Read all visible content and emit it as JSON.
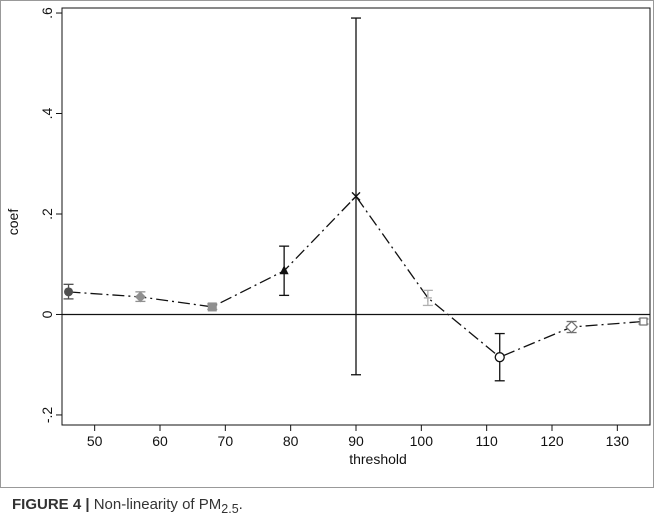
{
  "caption": {
    "label": "FIGURE 4 |",
    "text_before": "Non-linearity of PM",
    "subscript": "2.5",
    "text_after": "."
  },
  "chart_data": {
    "type": "scatter",
    "title": "",
    "xlabel": "threshold",
    "ylabel": "coef",
    "xlim": [
      45,
      135
    ],
    "ylim": [
      -0.22,
      0.61
    ],
    "x_ticks": [
      50,
      60,
      70,
      80,
      90,
      100,
      110,
      120,
      130
    ],
    "x_tick_labels": [
      "50",
      "60",
      "70",
      "80",
      "90",
      "100",
      "110",
      "120",
      "130"
    ],
    "y_ticks": [
      -0.2,
      0,
      0.2,
      0.4,
      0.6
    ],
    "y_tick_labels": [
      "-.2",
      "0",
      ".2",
      ".4",
      ".6"
    ],
    "reference_line_y": 0,
    "grid": false,
    "legend": "none",
    "series": [
      {
        "line_style": "dash-dot",
        "points": [
          {
            "x": 46,
            "y": 0.045,
            "lo": 0.031,
            "hi": 0.06,
            "marker": "filled-circle",
            "color": "#505050"
          },
          {
            "x": 57,
            "y": 0.035,
            "lo": 0.026,
            "hi": 0.045,
            "marker": "filled-diamond",
            "color": "#909090"
          },
          {
            "x": 68,
            "y": 0.015,
            "lo": 0.01,
            "hi": 0.021,
            "marker": "filled-square",
            "color": "#909090"
          },
          {
            "x": 79,
            "y": 0.087,
            "lo": 0.038,
            "hi": 0.136,
            "marker": "filled-triangle",
            "color": "#111111"
          },
          {
            "x": 90,
            "y": 0.235,
            "lo": -0.12,
            "hi": 0.59,
            "marker": "x",
            "color": "#111111"
          },
          {
            "x": 101,
            "y": 0.033,
            "lo": 0.018,
            "hi": 0.048,
            "marker": "plus",
            "color": "#b0b0b0"
          },
          {
            "x": 112,
            "y": -0.085,
            "lo": -0.132,
            "hi": -0.038,
            "marker": "hollow-circle",
            "color": "#111111"
          },
          {
            "x": 123,
            "y": -0.025,
            "lo": -0.036,
            "hi": -0.014,
            "marker": "hollow-diamond",
            "color": "#707070"
          },
          {
            "x": 134,
            "y": -0.014,
            "lo": -0.019,
            "hi": -0.009,
            "marker": "hollow-square",
            "color": "#707070"
          }
        ]
      }
    ]
  }
}
